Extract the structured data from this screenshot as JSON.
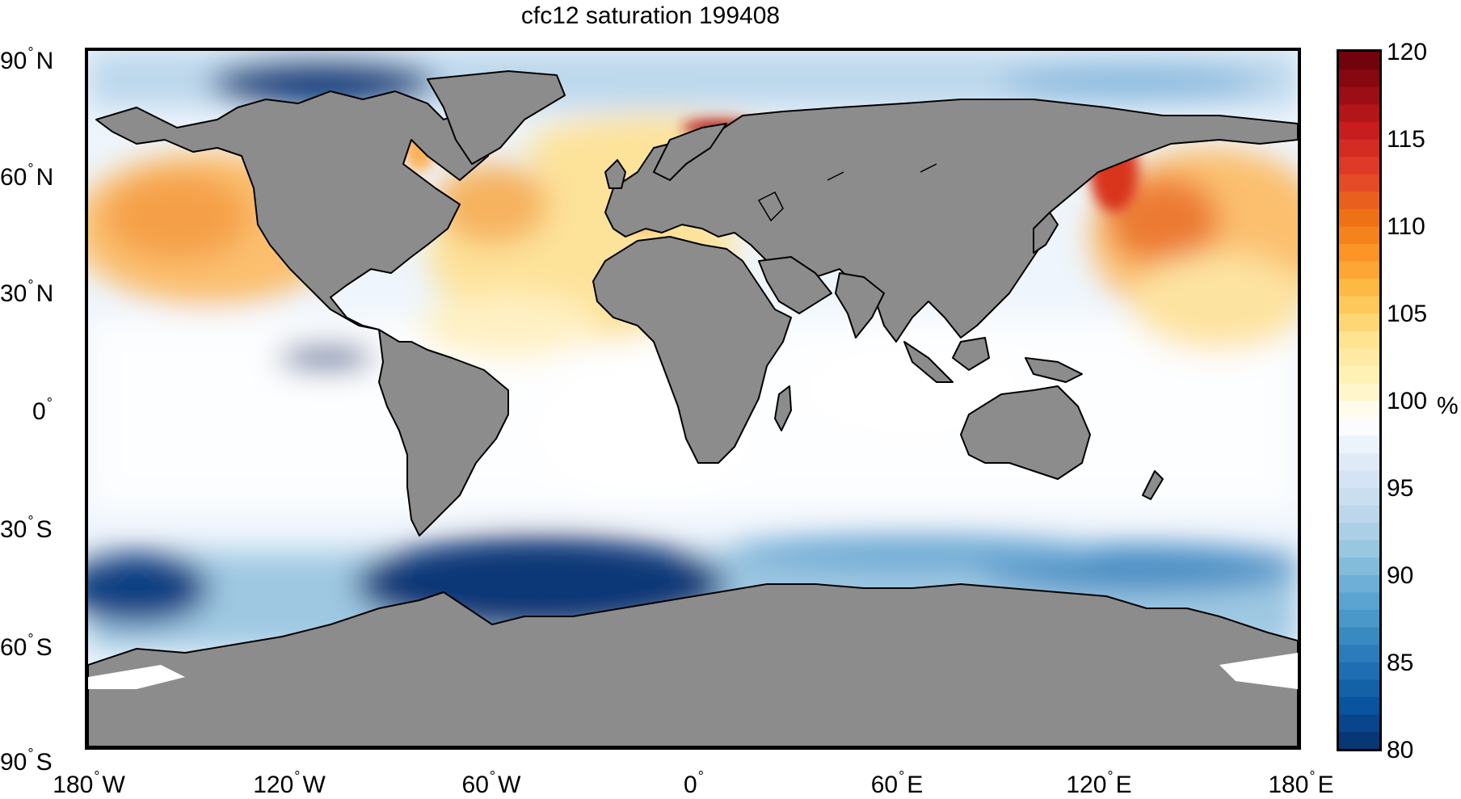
{
  "title": "cfc12 saturation 199408",
  "lat_labels": [
    {
      "val": "90",
      "hem": "N"
    },
    {
      "val": "60",
      "hem": "N"
    },
    {
      "val": "30",
      "hem": "N"
    },
    {
      "val": "0",
      "hem": ""
    },
    {
      "val": "30",
      "hem": "S"
    },
    {
      "val": "60",
      "hem": "S"
    },
    {
      "val": "90",
      "hem": "S"
    }
  ],
  "lon_labels": [
    {
      "val": "180",
      "hem": "W"
    },
    {
      "val": "120",
      "hem": "W"
    },
    {
      "val": "60",
      "hem": "W"
    },
    {
      "val": "0",
      "hem": ""
    },
    {
      "val": "60",
      "hem": "E"
    },
    {
      "val": "120",
      "hem": "E"
    },
    {
      "val": "180",
      "hem": "E"
    }
  ],
  "colorbar": {
    "unit": "%",
    "ticks": [
      "120",
      "115",
      "110",
      "105",
      "100",
      "95",
      "90",
      "85",
      "80"
    ],
    "range": [
      80,
      120
    ],
    "steps": 40,
    "colors_low_to_high": [
      "#08306b",
      "#08519c",
      "#2171b5",
      "#4292c6",
      "#6baed6",
      "#9ecae1",
      "#c6dbef",
      "#deebf7",
      "#ffffff",
      "#fff3b8",
      "#fee391",
      "#fec44f",
      "#fe9929",
      "#ec7014",
      "#e3432a",
      "#cc1f1f",
      "#990d14",
      "#67000d"
    ]
  },
  "colors": {
    "land": "#8c8c8c",
    "coast": "#000000",
    "ocean_neutral": "#f7fbff"
  }
}
